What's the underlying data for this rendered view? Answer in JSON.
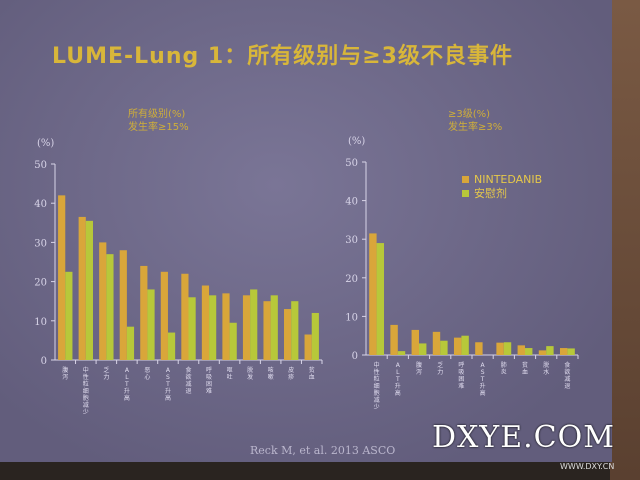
{
  "title": "LUME-Lung 1：所有级别与≥3级不良事件",
  "footer": "Reck M, et al. 2013 ASCO",
  "watermark": "DXYE.COM",
  "watermark_url": "WWW.DXY.CN",
  "colors": {
    "nintedanib": "#d9a63a",
    "placebo": "#b7c83a"
  },
  "chart_data": [
    {
      "type": "bar",
      "subtitle": [
        "所有级别(%)",
        "发生率≥15%"
      ],
      "ylabel": "(%)",
      "ylim": [
        0,
        50
      ],
      "yticks": [
        0,
        10,
        20,
        30,
        40,
        50
      ],
      "categories": [
        "腹泻",
        "中性粒细胞减少",
        "乏力",
        "ALT升高",
        "恶心",
        "AST升高",
        "食欲减退",
        "呼吸困难",
        "呕吐",
        "脱发",
        "咳嗽",
        "皮疹",
        "贫血"
      ],
      "series": [
        {
          "name": "NINTEDANIB",
          "values": [
            42,
            36.5,
            30,
            28,
            24,
            22.5,
            22,
            19,
            17,
            16.5,
            15,
            13,
            6.5
          ]
        },
        {
          "name": "安慰剂",
          "values": [
            22.5,
            35.5,
            27,
            8.5,
            18,
            7,
            16,
            16.5,
            9.5,
            18,
            16.5,
            15,
            12
          ]
        }
      ]
    },
    {
      "type": "bar",
      "subtitle": [
        "≥3级(%)",
        "发生率≥3%"
      ],
      "ylabel": "(%)",
      "ylim": [
        0,
        50
      ],
      "yticks": [
        0,
        10,
        20,
        30,
        40,
        50
      ],
      "legend": "top-right",
      "categories": [
        "中性粒细胞减少",
        "ALT升高",
        "腹泻",
        "乏力",
        "呼吸困难",
        "AST升高",
        "肺炎",
        "贫血",
        "脱水",
        "食欲减退"
      ],
      "series": [
        {
          "name": "NINTEDANIB",
          "values": [
            31.5,
            7.8,
            6.5,
            6,
            4.5,
            3.3,
            3.2,
            2.5,
            1.2,
            1.8
          ]
        },
        {
          "name": "安慰剂",
          "values": [
            29,
            1,
            3,
            3.7,
            5,
            0,
            3.3,
            1.8,
            2.3,
            1.7
          ]
        }
      ]
    }
  ]
}
